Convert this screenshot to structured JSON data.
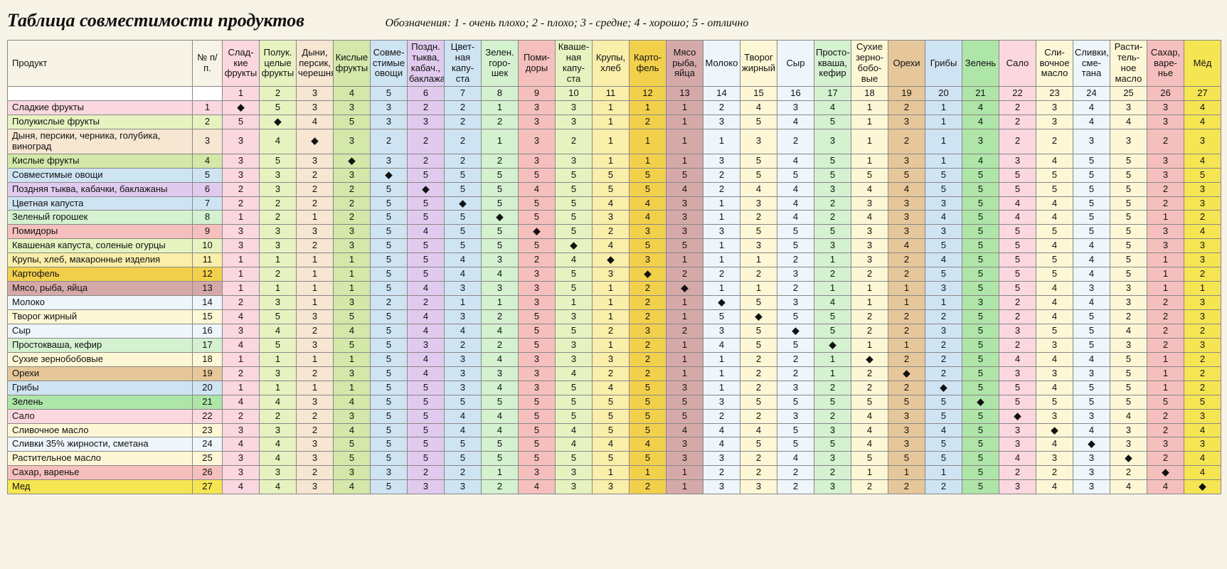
{
  "title": "Таблица совместимости продуктов",
  "legend": "Обозначения: 1 - очень плохо; 2 - плохо; 3 - средне; 4 - хорошо; 5 - отлично",
  "header_product": "Продукт",
  "header_num": "№ п/п.",
  "diag_marker": "◆",
  "col_colors": [
    "#fbd7df",
    "#e6f3c0",
    "#f6e6d2",
    "#d3e8a9",
    "#cfe4f3",
    "#e0cbee",
    "#cfe4f3",
    "#d4f1d0",
    "#f5bfbd",
    "#e6f3c0",
    "#f9eeaa",
    "#f3d04c",
    "#d6a9a9",
    "#eef5fb",
    "#fef7d6",
    "#eef5fb",
    "#d4f1d0",
    "#fef7d6",
    "#e6c79a",
    "#cfe4f3",
    "#aee5a8",
    "#fbd7df",
    "#fef7d6",
    "#eef5fb",
    "#fef7d6",
    "#f5bfbd",
    "#f6e552"
  ],
  "neutral_bg": "#ffffff",
  "columns": [
    "Слад-кие фрукты",
    "Полук. целые фрукты",
    "Дыни, персик, черешня",
    "Кислые фрукты",
    "Совме-стимые овощи",
    "Поздн. тыква, кабач., баклажаны",
    "Цвет-ная капу-ста",
    "Зелен. горо-шек",
    "Поми-доры",
    "Кваше-ная капу-ста",
    "Крупы, хлеб",
    "Карто-фель",
    "Мясо рыба, яйца",
    "Молоко",
    "Творог жирный",
    "Сыр",
    "Просто-кваша, кефир",
    "Сухие зерно-бобо-вые",
    "Орехи",
    "Грибы",
    "Зелень",
    "Сало",
    "Сли-вочное масло",
    "Сливки, сме-тана",
    "Расти-тель-ное масло",
    "Сахар, варе-нье",
    "Мёд"
  ],
  "rows": [
    "Сладкие фрукты",
    "Полукислые фрукты",
    "Дыня, персики, черника, голубика, виноград",
    "Кислые фрукты",
    "Совместимые овощи",
    "Поздняя тыква, кабачки, баклажаны",
    "Цветная капуста",
    "Зеленый горошек",
    "Помидоры",
    "Квашеная капуста, соленые огурцы",
    "Крупы, хлеб, макаронные изделия",
    "Картофель",
    "Мясо, рыба, яйца",
    "Молоко",
    "Творог жирный",
    "Сыр",
    "Простокваша, кефир",
    "Сухие зернобобовые",
    "Орехи",
    "Грибы",
    "Зелень",
    "Сало",
    "Сливочное масло",
    "Сливки 35% жирности, сметана",
    "Растительное масло",
    "Сахар, варенье",
    "Мед"
  ],
  "data": [
    [
      0,
      5,
      3,
      3,
      3,
      2,
      2,
      1,
      3,
      3,
      1,
      1,
      1,
      2,
      4,
      3,
      4,
      1,
      2,
      1,
      4,
      2,
      3,
      4,
      3,
      3,
      4
    ],
    [
      5,
      0,
      4,
      5,
      3,
      3,
      2,
      2,
      3,
      3,
      1,
      2,
      1,
      3,
      5,
      4,
      5,
      1,
      3,
      1,
      4,
      2,
      3,
      4,
      4,
      3,
      4
    ],
    [
      3,
      4,
      0,
      3,
      2,
      2,
      2,
      1,
      3,
      2,
      1,
      1,
      1,
      1,
      3,
      2,
      3,
      1,
      2,
      1,
      3,
      2,
      2,
      3,
      3,
      2,
      3
    ],
    [
      3,
      5,
      3,
      0,
      3,
      2,
      2,
      2,
      3,
      3,
      1,
      1,
      1,
      3,
      5,
      4,
      5,
      1,
      3,
      1,
      4,
      3,
      4,
      5,
      5,
      3,
      4
    ],
    [
      3,
      3,
      2,
      3,
      0,
      5,
      5,
      5,
      5,
      5,
      5,
      5,
      5,
      2,
      5,
      5,
      5,
      5,
      5,
      5,
      5,
      5,
      5,
      5,
      5,
      3,
      5
    ],
    [
      2,
      3,
      2,
      2,
      5,
      0,
      5,
      5,
      4,
      5,
      5,
      5,
      4,
      2,
      4,
      4,
      3,
      4,
      4,
      5,
      5,
      5,
      5,
      5,
      5,
      2,
      3
    ],
    [
      2,
      2,
      2,
      2,
      5,
      5,
      0,
      5,
      5,
      5,
      4,
      4,
      3,
      1,
      3,
      4,
      2,
      3,
      3,
      3,
      5,
      4,
      4,
      5,
      5,
      2,
      3
    ],
    [
      1,
      2,
      1,
      2,
      5,
      5,
      5,
      0,
      5,
      5,
      3,
      4,
      3,
      1,
      2,
      4,
      2,
      4,
      3,
      4,
      5,
      4,
      4,
      5,
      5,
      1,
      2
    ],
    [
      3,
      3,
      3,
      3,
      5,
      4,
      5,
      5,
      0,
      5,
      2,
      3,
      3,
      3,
      5,
      5,
      5,
      3,
      3,
      3,
      5,
      5,
      5,
      5,
      5,
      3,
      4
    ],
    [
      3,
      3,
      2,
      3,
      5,
      5,
      5,
      5,
      5,
      0,
      4,
      5,
      5,
      1,
      3,
      5,
      3,
      3,
      4,
      5,
      5,
      5,
      4,
      4,
      5,
      3,
      3
    ],
    [
      1,
      1,
      1,
      1,
      5,
      5,
      4,
      3,
      2,
      4,
      0,
      3,
      1,
      1,
      1,
      2,
      1,
      3,
      2,
      4,
      5,
      5,
      5,
      4,
      5,
      1,
      3
    ],
    [
      1,
      2,
      1,
      1,
      5,
      5,
      4,
      4,
      3,
      5,
      3,
      0,
      2,
      2,
      2,
      3,
      2,
      2,
      2,
      5,
      5,
      5,
      5,
      4,
      5,
      1,
      2
    ],
    [
      1,
      1,
      1,
      1,
      5,
      4,
      3,
      3,
      3,
      5,
      1,
      2,
      0,
      1,
      1,
      2,
      1,
      1,
      1,
      3,
      5,
      5,
      4,
      3,
      3,
      1,
      1
    ],
    [
      2,
      3,
      1,
      3,
      2,
      2,
      1,
      1,
      3,
      1,
      1,
      2,
      1,
      0,
      5,
      3,
      4,
      1,
      1,
      1,
      3,
      2,
      4,
      4,
      3,
      2,
      3
    ],
    [
      4,
      5,
      3,
      5,
      5,
      4,
      3,
      2,
      5,
      3,
      1,
      2,
      1,
      5,
      0,
      5,
      5,
      2,
      2,
      2,
      5,
      2,
      4,
      5,
      2,
      2,
      3
    ],
    [
      3,
      4,
      2,
      4,
      5,
      4,
      4,
      4,
      5,
      5,
      2,
      3,
      2,
      3,
      5,
      0,
      5,
      2,
      2,
      3,
      5,
      3,
      5,
      5,
      4,
      2,
      2
    ],
    [
      4,
      5,
      3,
      5,
      5,
      3,
      2,
      2,
      5,
      3,
      1,
      2,
      1,
      4,
      5,
      5,
      0,
      1,
      1,
      2,
      5,
      2,
      3,
      5,
      3,
      2,
      3
    ],
    [
      1,
      1,
      1,
      1,
      5,
      4,
      3,
      4,
      3,
      3,
      3,
      2,
      1,
      1,
      2,
      2,
      1,
      0,
      2,
      2,
      5,
      4,
      4,
      4,
      5,
      1,
      2
    ],
    [
      2,
      3,
      2,
      3,
      5,
      4,
      3,
      3,
      3,
      4,
      2,
      2,
      1,
      1,
      2,
      2,
      1,
      2,
      0,
      2,
      5,
      3,
      3,
      3,
      5,
      1,
      2
    ],
    [
      1,
      1,
      1,
      1,
      5,
      5,
      3,
      4,
      3,
      5,
      4,
      5,
      3,
      1,
      2,
      3,
      2,
      2,
      2,
      0,
      5,
      5,
      4,
      5,
      5,
      1,
      2
    ],
    [
      4,
      4,
      3,
      4,
      5,
      5,
      5,
      5,
      5,
      5,
      5,
      5,
      5,
      3,
      5,
      5,
      5,
      5,
      5,
      5,
      0,
      5,
      5,
      5,
      5,
      5,
      5
    ],
    [
      2,
      2,
      2,
      3,
      5,
      5,
      4,
      4,
      5,
      5,
      5,
      5,
      5,
      2,
      2,
      3,
      2,
      4,
      3,
      5,
      5,
      0,
      3,
      3,
      4,
      2,
      3
    ],
    [
      3,
      3,
      2,
      4,
      5,
      5,
      4,
      4,
      5,
      4,
      5,
      5,
      4,
      4,
      4,
      5,
      3,
      4,
      3,
      4,
      5,
      3,
      0,
      4,
      3,
      2,
      4
    ],
    [
      4,
      4,
      3,
      5,
      5,
      5,
      5,
      5,
      5,
      4,
      4,
      4,
      3,
      4,
      5,
      5,
      5,
      4,
      3,
      5,
      5,
      3,
      4,
      0,
      3,
      3,
      3
    ],
    [
      3,
      4,
      3,
      5,
      5,
      5,
      5,
      5,
      5,
      5,
      5,
      5,
      3,
      3,
      2,
      4,
      3,
      5,
      5,
      5,
      5,
      4,
      3,
      3,
      0,
      2,
      4
    ],
    [
      3,
      3,
      2,
      3,
      3,
      2,
      2,
      1,
      3,
      3,
      1,
      1,
      1,
      2,
      2,
      2,
      2,
      1,
      1,
      1,
      5,
      2,
      2,
      3,
      2,
      0,
      4
    ],
    [
      4,
      4,
      3,
      4,
      5,
      3,
      3,
      2,
      4,
      3,
      3,
      2,
      1,
      3,
      3,
      2,
      3,
      2,
      2,
      2,
      5,
      3,
      4,
      3,
      4,
      4,
      0
    ]
  ]
}
